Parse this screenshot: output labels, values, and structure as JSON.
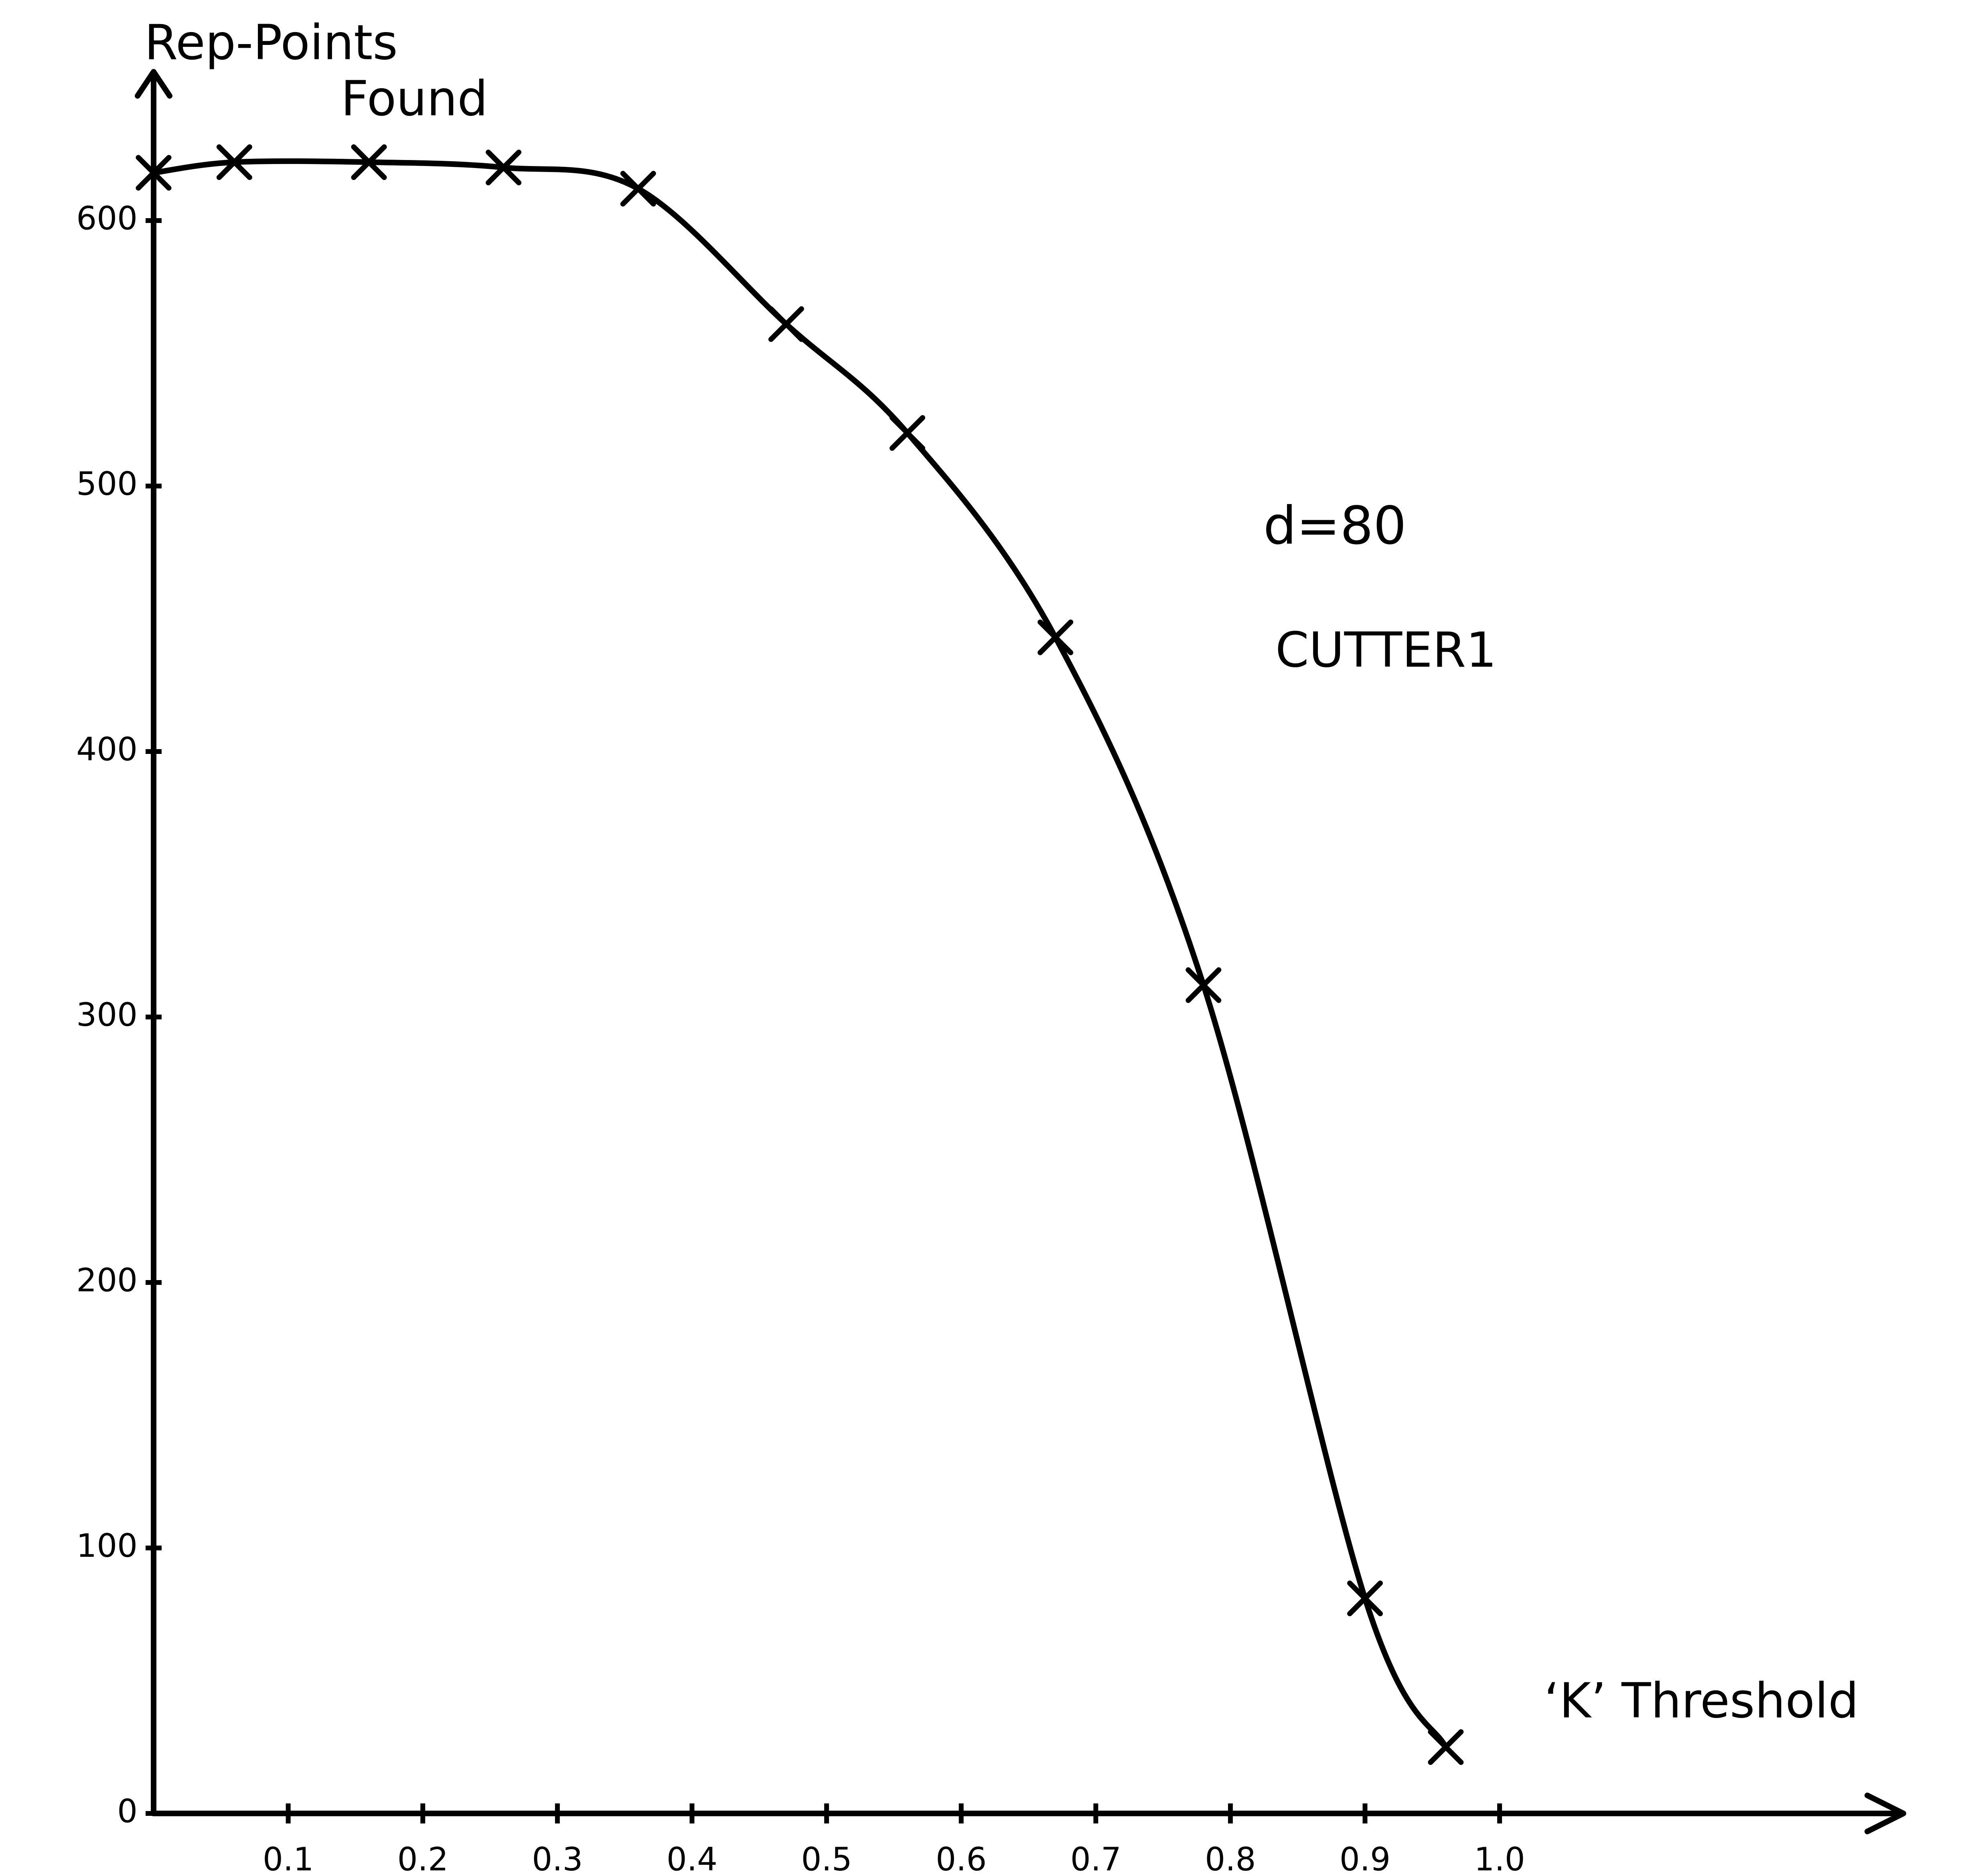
{
  "chart_data": {
    "type": "line",
    "y_label_lines": [
      "Rep-Points",
      "Found"
    ],
    "x_label": "‘K’ Threshold",
    "annotations": [
      "d=80",
      "CUTTER1"
    ],
    "x": [
      0,
      0.06,
      0.16,
      0.26,
      0.36,
      0.47,
      0.56,
      0.67,
      0.78,
      0.9,
      0.96
    ],
    "values": [
      618,
      622,
      622,
      620,
      612,
      561,
      520,
      443,
      312,
      81,
      25
    ],
    "color": "#000000",
    "xlim": [
      0,
      1.3
    ],
    "ylim": [
      0,
      650
    ],
    "xticks": [
      0.1,
      0.2,
      0.3,
      0.4,
      0.5,
      0.6,
      0.7,
      0.8,
      0.9,
      {
        "value": 1,
        "label": "1.0"
      }
    ],
    "yticks": [
      0,
      100,
      200,
      300,
      400,
      500,
      600
    ],
    "grid": false
  }
}
